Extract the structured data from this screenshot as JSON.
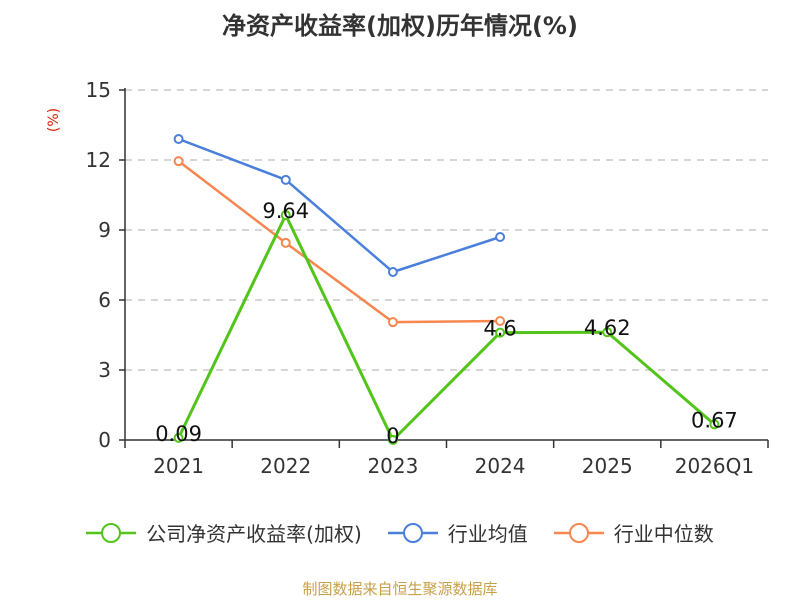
{
  "chart_data": {
    "type": "line",
    "title": "净资产收益率(加权)历年情况(%)",
    "ylabel": "(%)",
    "categories": [
      "2021",
      "2022",
      "2023",
      "2024",
      "2025",
      "2026Q1"
    ],
    "ylim": [
      0,
      15
    ],
    "yticks": [
      0,
      3,
      6,
      9,
      12,
      15
    ],
    "grid": true,
    "legend_position": "bottom",
    "series": [
      {
        "name": "公司净资产收益率(加权)",
        "color": "#52c41a",
        "values": [
          0.09,
          9.64,
          0,
          4.6,
          4.62,
          0.67
        ],
        "labels": [
          "0.09",
          "9.64",
          "0",
          "4.6",
          "4.62",
          "0.67"
        ]
      },
      {
        "name": "行业均值",
        "color": "#4a7fdc",
        "values": [
          12.9,
          11.15,
          7.2,
          8.7,
          null,
          null
        ]
      },
      {
        "name": "行业中位数",
        "color": "#f5874f",
        "values": [
          11.95,
          8.45,
          5.05,
          5.1,
          null,
          null
        ]
      }
    ]
  },
  "footer": "制图数据来自恒生聚源数据库"
}
